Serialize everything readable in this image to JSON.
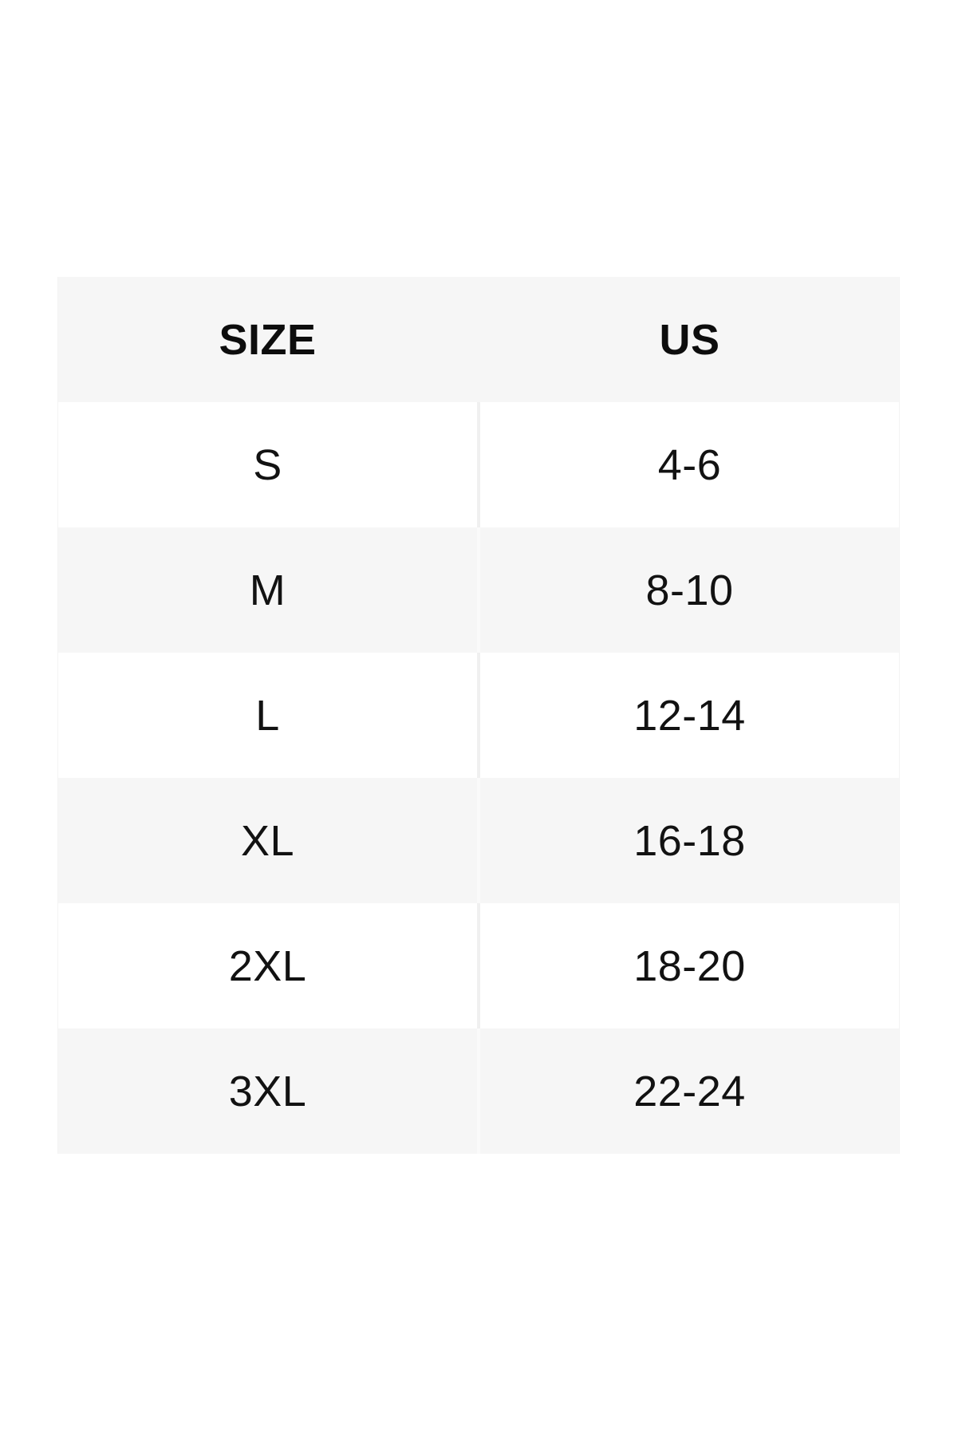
{
  "colors": {
    "page_background": "#ffffff",
    "row_shaded": "#f6f6f6",
    "row_plain": "#ffffff",
    "column_divider": "#f0f0f0",
    "text": "#121212"
  },
  "chart_data": {
    "type": "table",
    "columns": [
      "SIZE",
      "US"
    ],
    "rows": [
      {
        "size": "S",
        "us": "4-6"
      },
      {
        "size": "M",
        "us": "8-10"
      },
      {
        "size": "L",
        "us": "12-14"
      },
      {
        "size": "XL",
        "us": "16-18"
      },
      {
        "size": "2XL",
        "us": "18-20"
      },
      {
        "size": "3XL",
        "us": "22-24"
      }
    ]
  }
}
